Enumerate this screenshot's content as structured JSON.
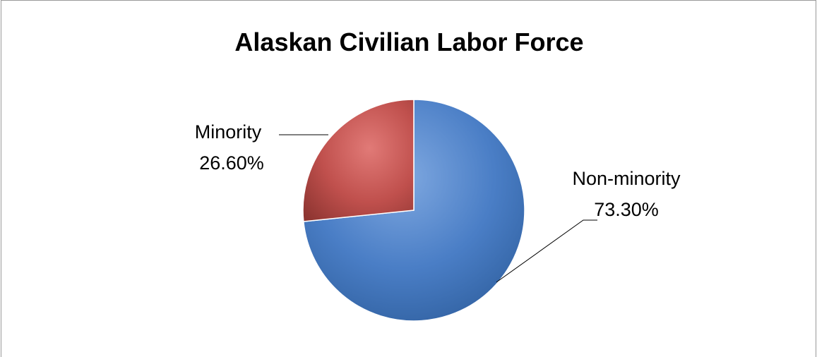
{
  "chart_data": {
    "type": "pie",
    "title": "Alaskan Civilian Labor Force",
    "slices": [
      {
        "name": "Non-minority",
        "value": 73.3,
        "value_label": "73.30%",
        "color": "#4a7ec6"
      },
      {
        "name": "Minority",
        "value": 26.6,
        "value_label": "26.60%",
        "color": "#c0504d"
      }
    ],
    "legend": "none",
    "data_labels": "outside-with-leader-lines"
  }
}
